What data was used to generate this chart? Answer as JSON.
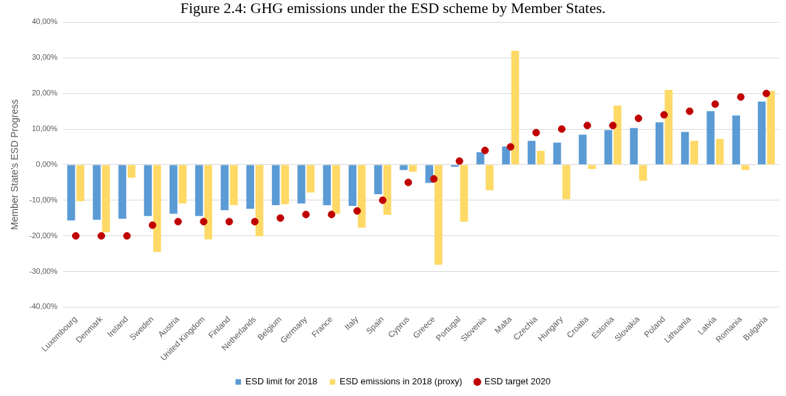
{
  "chart_data": {
    "type": "bar",
    "title": "Figure 2.4: GHG emissions under the ESD scheme by Member States.",
    "ylabel": "Member State's ESD Progress",
    "categories": [
      "Luxembourg",
      "Denmark",
      "Ireland",
      "Sweden",
      "Austria",
      "United Kingdom",
      "Finland",
      "Netherlands",
      "Belgium",
      "Germany",
      "France",
      "Italy",
      "Spain",
      "Cyprus",
      "Greece",
      "Portugal",
      "Slovenia",
      "Malta",
      "Czechia",
      "Hungary",
      "Croatia",
      "Estonia",
      "Slovakia",
      "Poland",
      "Lithuania",
      "Latvia",
      "Romania",
      "Bulgaria"
    ],
    "series": [
      {
        "name": "ESD limit for 2018",
        "color": "#5b9bd5",
        "values": [
          -15.7,
          -15.5,
          -15.2,
          -14.4,
          -13.8,
          -14.4,
          -12.8,
          -12.4,
          -11.4,
          -10.9,
          -11.4,
          -11.6,
          -8.3,
          -1.5,
          -5.1,
          -0.6,
          3.5,
          5.1,
          6.7,
          6.2,
          8.4,
          9.7,
          10.3,
          11.9,
          9.2,
          15.0,
          13.8,
          17.7
        ]
      },
      {
        "name": "ESD emissions in 2018 (proxy)",
        "color": "#ffd966",
        "values": [
          -10.3,
          -19.0,
          -3.7,
          -24.5,
          -10.9,
          -21.0,
          -11.4,
          -20.1,
          -11.1,
          -7.8,
          -13.8,
          -17.7,
          -14.1,
          -2.0,
          -28.1,
          -16.0,
          -7.2,
          32.0,
          3.9,
          -9.7,
          -1.2,
          16.6,
          -4.5,
          21.0,
          6.7,
          7.2,
          -1.5,
          20.7
        ]
      },
      {
        "name": "ESD target 2020",
        "type": "scatter",
        "color": "#c00000",
        "marker": "circle",
        "x": [
          "Luxembourg",
          "Denmark",
          "Ireland",
          "Sweden",
          "Austria",
          "United Kingdom",
          "Finland",
          "Netherlands",
          "Belgium",
          "Germany",
          "France",
          "Italy",
          "Spain",
          "Cyprus",
          "Greece",
          "Portugal",
          "Slovenia",
          "Malta",
          "Czechia",
          "Hungary",
          "Croatia",
          "Estonia",
          "Slovakia",
          "Poland",
          "Lithuania",
          "Latvia",
          "Romania",
          "Bulgaria"
        ],
        "values": [
          -20,
          -20,
          -20,
          -17,
          -16,
          -16,
          -16,
          -16,
          -15,
          -14,
          -14,
          -13,
          -10,
          -5,
          -4,
          1,
          4,
          5,
          9,
          10,
          11,
          11,
          13,
          14,
          15,
          17,
          19,
          20
        ]
      }
    ],
    "ylim": [
      -40,
      40
    ],
    "yticks": [
      {
        "value": -40,
        "label": "-40,00%"
      },
      {
        "value": -30,
        "label": "-30,00%"
      },
      {
        "value": -20,
        "label": "-20,00%"
      },
      {
        "value": -10,
        "label": "-10,00%"
      },
      {
        "value": 0,
        "label": "0,00%"
      },
      {
        "value": 10,
        "label": "10,00%"
      },
      {
        "value": 20,
        "label": "20,00%"
      },
      {
        "value": 30,
        "label": "30,00%"
      },
      {
        "value": 40,
        "label": "40,00%"
      }
    ],
    "grid": "y",
    "legend": "bottom"
  }
}
